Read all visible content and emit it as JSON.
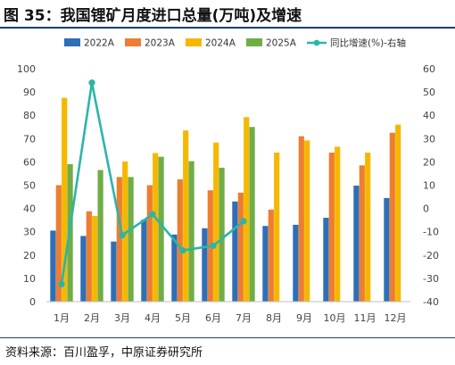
{
  "figure": {
    "title": "图 35：我国锂矿月度进口总量(万吨)及增速",
    "source": "资料来源：百川盈孚，中原证券研究所"
  },
  "chart_data": {
    "type": "bar",
    "categories": [
      "1月",
      "2月",
      "3月",
      "4月",
      "5月",
      "6月",
      "7月",
      "8月",
      "9月",
      "10月",
      "11月",
      "12月"
    ],
    "series": [
      {
        "name": "2022A",
        "color": "#2e6fb7",
        "values": [
          30.5,
          28.2,
          25.8,
          35.2,
          28.8,
          31.5,
          43.0,
          32.5,
          33.0,
          36.0,
          49.8,
          44.5
        ]
      },
      {
        "name": "2023A",
        "color": "#ed7d31",
        "values": [
          50.0,
          38.8,
          53.5,
          50.0,
          52.5,
          47.8,
          46.8,
          39.5,
          71.0,
          64.0,
          58.5,
          72.5
        ]
      },
      {
        "name": "2024A",
        "color": "#f5b800",
        "values": [
          87.5,
          36.8,
          60.2,
          63.8,
          73.5,
          68.3,
          79.2,
          64.0,
          69.2,
          66.5,
          64.0,
          76.0
        ]
      },
      {
        "name": "2025A",
        "color": "#70ad47",
        "values": [
          59.0,
          56.5,
          53.5,
          62.2,
          60.3,
          57.5,
          75.0,
          null,
          null,
          null,
          null,
          null
        ]
      }
    ],
    "line": {
      "name": "同比增速(%)-右轴",
      "color": "#2bb5a8",
      "values": [
        -32.5,
        54.0,
        -11.5,
        -2.5,
        -18.0,
        -16.0,
        -5.5,
        null,
        null,
        null,
        null,
        null
      ]
    },
    "ylim": [
      0,
      100
    ],
    "y_ticks": [
      0,
      10,
      20,
      30,
      40,
      50,
      60,
      70,
      80,
      90,
      100
    ],
    "y2lim": [
      -40,
      60
    ],
    "y2_ticks": [
      -40,
      -30,
      -20,
      -10,
      0,
      10,
      20,
      30,
      40,
      50,
      60
    ],
    "legend_position": "top",
    "grid": false
  }
}
